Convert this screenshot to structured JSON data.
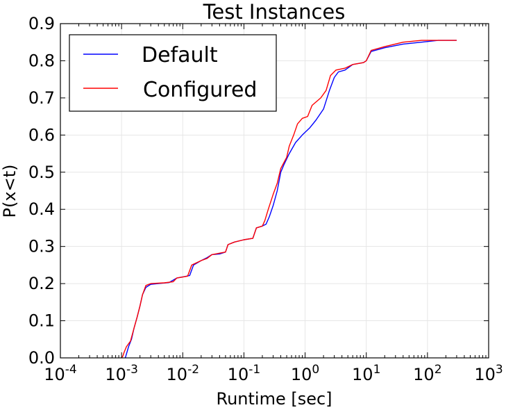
{
  "chart_data": {
    "type": "line",
    "title": "Test Instances",
    "xlabel": "Runtime [sec]",
    "ylabel": "P(x<t)",
    "xscale": "log",
    "xlim": [
      0.0001,
      1000
    ],
    "ylim": [
      0.0,
      0.9
    ],
    "grid": true,
    "legend_position": "top-left",
    "x_ticks": [
      {
        "value": 0.0001,
        "base": "10",
        "exp": "-4"
      },
      {
        "value": 0.001,
        "base": "10",
        "exp": "-3"
      },
      {
        "value": 0.01,
        "base": "10",
        "exp": "-2"
      },
      {
        "value": 0.1,
        "base": "10",
        "exp": "-1"
      },
      {
        "value": 1,
        "base": "10",
        "exp": "0"
      },
      {
        "value": 10,
        "base": "10",
        "exp": "1"
      },
      {
        "value": 100,
        "base": "10",
        "exp": "2"
      },
      {
        "value": 1000,
        "base": "10",
        "exp": "3"
      }
    ],
    "y_ticks": [
      {
        "value": 0.0,
        "label": "0.0"
      },
      {
        "value": 0.1,
        "label": "0.1"
      },
      {
        "value": 0.2,
        "label": "0.2"
      },
      {
        "value": 0.3,
        "label": "0.3"
      },
      {
        "value": 0.4,
        "label": "0.4"
      },
      {
        "value": 0.5,
        "label": "0.5"
      },
      {
        "value": 0.6,
        "label": "0.6"
      },
      {
        "value": 0.7,
        "label": "0.7"
      },
      {
        "value": 0.8,
        "label": "0.8"
      },
      {
        "value": 0.9,
        "label": "0.9"
      }
    ],
    "series": [
      {
        "name": "Default",
        "color": "#0000ff",
        "points": [
          [
            0.00115,
            0.0
          ],
          [
            0.0012,
            0.01
          ],
          [
            0.0013,
            0.03
          ],
          [
            0.00145,
            0.05
          ],
          [
            0.0016,
            0.08
          ],
          [
            0.0018,
            0.11
          ],
          [
            0.002,
            0.14
          ],
          [
            0.0022,
            0.17
          ],
          [
            0.0025,
            0.19
          ],
          [
            0.003,
            0.198
          ],
          [
            0.004,
            0.2
          ],
          [
            0.006,
            0.203
          ],
          [
            0.008,
            0.215
          ],
          [
            0.01,
            0.218
          ],
          [
            0.013,
            0.222
          ],
          [
            0.015,
            0.25
          ],
          [
            0.02,
            0.262
          ],
          [
            0.025,
            0.27
          ],
          [
            0.03,
            0.278
          ],
          [
            0.04,
            0.28
          ],
          [
            0.05,
            0.285
          ],
          [
            0.055,
            0.305
          ],
          [
            0.07,
            0.312
          ],
          [
            0.1,
            0.318
          ],
          [
            0.14,
            0.322
          ],
          [
            0.16,
            0.35
          ],
          [
            0.2,
            0.355
          ],
          [
            0.23,
            0.36
          ],
          [
            0.26,
            0.38
          ],
          [
            0.3,
            0.41
          ],
          [
            0.35,
            0.45
          ],
          [
            0.4,
            0.5
          ],
          [
            0.45,
            0.52
          ],
          [
            0.55,
            0.55
          ],
          [
            0.7,
            0.58
          ],
          [
            0.9,
            0.6
          ],
          [
            1.2,
            0.62
          ],
          [
            1.5,
            0.64
          ],
          [
            2.0,
            0.67
          ],
          [
            2.5,
            0.72
          ],
          [
            3.0,
            0.755
          ],
          [
            3.5,
            0.77
          ],
          [
            4.5,
            0.775
          ],
          [
            6.0,
            0.79
          ],
          [
            9.0,
            0.795
          ],
          [
            10.0,
            0.8
          ],
          [
            12.0,
            0.825
          ],
          [
            20.0,
            0.835
          ],
          [
            40.0,
            0.845
          ],
          [
            80.0,
            0.85
          ],
          [
            150.0,
            0.855
          ],
          [
            300.0,
            0.855
          ]
        ]
      },
      {
        "name": "Configured",
        "color": "#ff0000",
        "points": [
          [
            0.001,
            0.0
          ],
          [
            0.00105,
            0.005
          ],
          [
            0.0011,
            0.015
          ],
          [
            0.0012,
            0.03
          ],
          [
            0.0014,
            0.045
          ],
          [
            0.0016,
            0.08
          ],
          [
            0.0018,
            0.11
          ],
          [
            0.002,
            0.14
          ],
          [
            0.0022,
            0.17
          ],
          [
            0.0025,
            0.195
          ],
          [
            0.003,
            0.2
          ],
          [
            0.005,
            0.202
          ],
          [
            0.007,
            0.205
          ],
          [
            0.008,
            0.215
          ],
          [
            0.012,
            0.22
          ],
          [
            0.014,
            0.25
          ],
          [
            0.02,
            0.262
          ],
          [
            0.025,
            0.268
          ],
          [
            0.03,
            0.278
          ],
          [
            0.05,
            0.285
          ],
          [
            0.055,
            0.305
          ],
          [
            0.07,
            0.312
          ],
          [
            0.1,
            0.318
          ],
          [
            0.14,
            0.322
          ],
          [
            0.16,
            0.35
          ],
          [
            0.2,
            0.355
          ],
          [
            0.22,
            0.37
          ],
          [
            0.25,
            0.4
          ],
          [
            0.3,
            0.44
          ],
          [
            0.35,
            0.47
          ],
          [
            0.4,
            0.51
          ],
          [
            0.5,
            0.54
          ],
          [
            0.55,
            0.57
          ],
          [
            0.65,
            0.6
          ],
          [
            0.75,
            0.63
          ],
          [
            0.9,
            0.645
          ],
          [
            1.1,
            0.65
          ],
          [
            1.3,
            0.68
          ],
          [
            1.8,
            0.7
          ],
          [
            2.2,
            0.72
          ],
          [
            2.6,
            0.76
          ],
          [
            3.2,
            0.775
          ],
          [
            4.5,
            0.78
          ],
          [
            6.0,
            0.79
          ],
          [
            9.0,
            0.795
          ],
          [
            10.0,
            0.8
          ],
          [
            12.0,
            0.828
          ],
          [
            20.0,
            0.838
          ],
          [
            40.0,
            0.85
          ],
          [
            80.0,
            0.855
          ],
          [
            150.0,
            0.855
          ],
          [
            300.0,
            0.855
          ]
        ]
      }
    ]
  }
}
